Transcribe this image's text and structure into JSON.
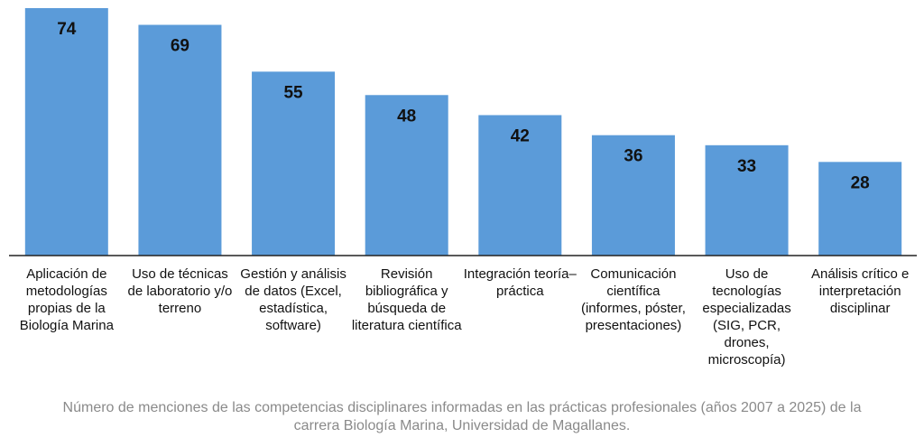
{
  "chart_data": {
    "type": "bar",
    "categories": [
      "Aplicación de metodologías propias de la Biología Marina",
      "Uso de técnicas de laboratorio y/o terreno",
      "Gestión y análisis de datos (Excel, estadística, software)",
      "Revisión bibliográfica y búsqueda de literatura científica",
      "Integración teoría–práctica",
      "Comunicación científica (informes, póster, presentaciones)",
      "Uso de tecnologías especializadas (SIG, PCR, drones, microscopía)",
      "Análisis crítico e interpretación disciplinar"
    ],
    "values": [
      74,
      69,
      55,
      48,
      42,
      36,
      33,
      28
    ],
    "color": "#5b9bd9",
    "caption": "Número de menciones de las competencias disciplinares informadas en las prácticas profesionales (años 2007 a 2025) de la carrera Biología Marina, Universidad de Magallanes."
  }
}
